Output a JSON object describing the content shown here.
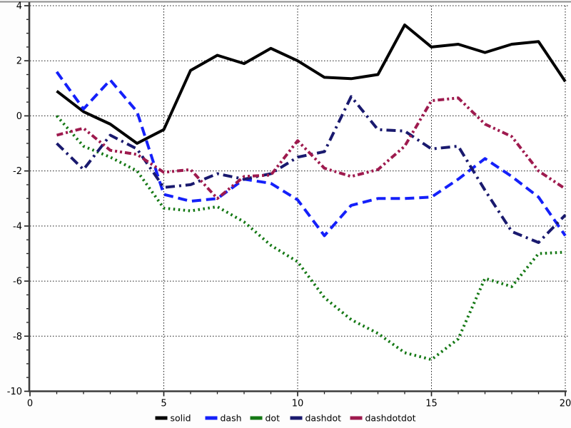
{
  "chart_data": {
    "type": "line",
    "title": "",
    "xlabel": "",
    "ylabel": "",
    "xlim": [
      0,
      20
    ],
    "ylim": [
      -10,
      4
    ],
    "x_ticks": [
      0,
      5,
      10,
      15,
      20
    ],
    "y_ticks": [
      4,
      2,
      0,
      -2,
      -4,
      -6,
      -8,
      -10
    ],
    "x_minor_step": 1,
    "y_minor_step": 0.5,
    "grid": true,
    "grid_style": "dotted",
    "legend_position": "bottom-center",
    "x": [
      1,
      2,
      3,
      4,
      5,
      6,
      7,
      8,
      9,
      10,
      11,
      12,
      13,
      14,
      15,
      16,
      17,
      18,
      19,
      20
    ],
    "series": [
      {
        "name": "solid",
        "color": "#000000",
        "dash": "solid",
        "values": [
          0.9,
          0.15,
          -0.3,
          -1.0,
          -0.5,
          1.65,
          2.2,
          1.9,
          2.45,
          2.0,
          1.4,
          1.35,
          1.5,
          3.3,
          2.5,
          2.6,
          2.3,
          2.6,
          2.7,
          1.25
        ]
      },
      {
        "name": "dash",
        "color": "#1420FA",
        "dash": "dash",
        "values": [
          1.6,
          0.25,
          1.3,
          0.15,
          -2.85,
          -3.1,
          -3.0,
          -2.3,
          -2.45,
          -3.05,
          -4.35,
          -3.25,
          -3.0,
          -3.0,
          -2.95,
          -2.3,
          -1.55,
          -2.2,
          -2.95,
          -4.35
        ]
      },
      {
        "name": "dot",
        "color": "#147814",
        "dash": "dot",
        "values": [
          0.0,
          -1.1,
          -1.5,
          -2.0,
          -3.35,
          -3.45,
          -3.3,
          -3.85,
          -4.7,
          -5.3,
          -6.6,
          -7.4,
          -7.9,
          -8.6,
          -8.85,
          -8.1,
          -5.9,
          -6.2,
          -5.0,
          -4.95
        ]
      },
      {
        "name": "dashdot",
        "color": "#19196E",
        "dash": "dashdot",
        "values": [
          -1.0,
          -1.95,
          -0.7,
          -1.2,
          -2.6,
          -2.5,
          -2.1,
          -2.3,
          -2.1,
          -1.5,
          -1.3,
          0.7,
          -0.5,
          -0.55,
          -1.2,
          -1.1,
          -2.7,
          -4.2,
          -4.6,
          -3.6
        ]
      },
      {
        "name": "dashdotdot",
        "color": "#9E1A4E",
        "dash": "dashdotdot",
        "values": [
          -0.7,
          -0.45,
          -1.25,
          -1.4,
          -2.05,
          -1.95,
          -3.0,
          -2.2,
          -2.15,
          -0.9,
          -1.9,
          -2.2,
          -1.95,
          -1.1,
          0.55,
          0.65,
          -0.3,
          -0.75,
          -2.0,
          -2.65
        ]
      }
    ],
    "legend": [
      "solid",
      "dash",
      "dot",
      "dashdot",
      "dashdotdot"
    ]
  },
  "style": {
    "background": "#fdfdfd",
    "plot_background": "#ffffff",
    "grid_color": "#1a1a1a",
    "axis_color": "#3c3c3c",
    "tick_color": "#1a1a1a",
    "tick_label_color": "#000000",
    "top_border_color": "#8c8c8c"
  }
}
